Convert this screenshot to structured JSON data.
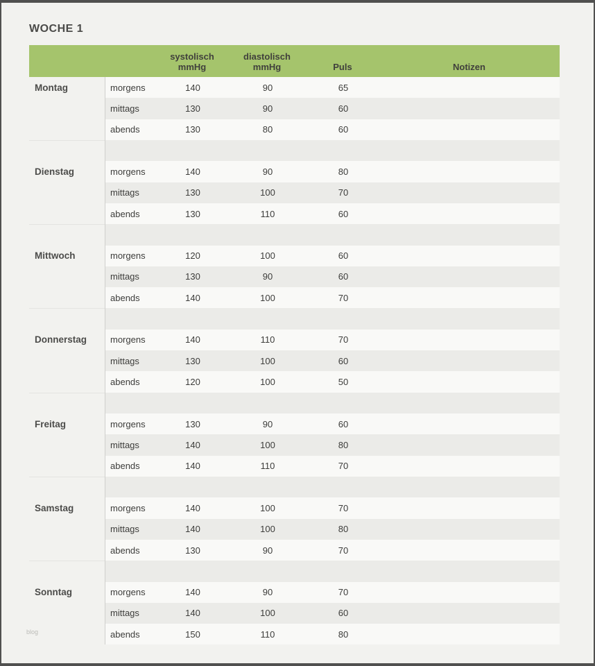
{
  "title": "WOCHE 1",
  "watermark": "blog",
  "colors": {
    "header-green": "#a5c46c",
    "page-bg": "#f2f2ef",
    "row-light": "#f9f9f7",
    "row-dark": "#ebebe8",
    "divider": "#cfcfcc",
    "frame": "#50504f"
  },
  "table": {
    "columns": [
      {
        "line1": "systolisch",
        "line2": "mmHg"
      },
      {
        "line1": "diastolisch",
        "line2": "mmHg"
      },
      {
        "line1": "Puls",
        "line2": ""
      },
      {
        "line1": "Notizen",
        "line2": ""
      }
    ],
    "days": [
      {
        "name": "Montag",
        "entries": [
          {
            "time": "morgens",
            "sys": "140",
            "dia": "90",
            "puls": "65",
            "note": ""
          },
          {
            "time": "mittags",
            "sys": "130",
            "dia": "90",
            "puls": "60",
            "note": ""
          },
          {
            "time": "abends",
            "sys": "130",
            "dia": "80",
            "puls": "60",
            "note": ""
          }
        ]
      },
      {
        "name": "Dienstag",
        "entries": [
          {
            "time": "morgens",
            "sys": "140",
            "dia": "90",
            "puls": "80",
            "note": ""
          },
          {
            "time": "mittags",
            "sys": "130",
            "dia": "100",
            "puls": "70",
            "note": ""
          },
          {
            "time": "abends",
            "sys": "130",
            "dia": "110",
            "puls": "60",
            "note": ""
          }
        ]
      },
      {
        "name": "Mittwoch",
        "entries": [
          {
            "time": "morgens",
            "sys": "120",
            "dia": "100",
            "puls": "60",
            "note": ""
          },
          {
            "time": "mittags",
            "sys": "130",
            "dia": "90",
            "puls": "60",
            "note": ""
          },
          {
            "time": "abends",
            "sys": "140",
            "dia": "100",
            "puls": "70",
            "note": ""
          }
        ]
      },
      {
        "name": "Donnerstag",
        "entries": [
          {
            "time": "morgens",
            "sys": "140",
            "dia": "110",
            "puls": "70",
            "note": ""
          },
          {
            "time": "mittags",
            "sys": "130",
            "dia": "100",
            "puls": "60",
            "note": ""
          },
          {
            "time": "abends",
            "sys": "120",
            "dia": "100",
            "puls": "50",
            "note": ""
          }
        ]
      },
      {
        "name": "Freitag",
        "entries": [
          {
            "time": "morgens",
            "sys": "130",
            "dia": "90",
            "puls": "60",
            "note": ""
          },
          {
            "time": "mittags",
            "sys": "140",
            "dia": "100",
            "puls": "80",
            "note": ""
          },
          {
            "time": "abends",
            "sys": "140",
            "dia": "110",
            "puls": "70",
            "note": ""
          }
        ]
      },
      {
        "name": "Samstag",
        "entries": [
          {
            "time": "morgens",
            "sys": "140",
            "dia": "100",
            "puls": "70",
            "note": ""
          },
          {
            "time": "mittags",
            "sys": "140",
            "dia": "100",
            "puls": "80",
            "note": ""
          },
          {
            "time": "abends",
            "sys": "130",
            "dia": "90",
            "puls": "70",
            "note": ""
          }
        ]
      },
      {
        "name": "Sonntag",
        "entries": [
          {
            "time": "morgens",
            "sys": "140",
            "dia": "90",
            "puls": "70",
            "note": ""
          },
          {
            "time": "mittags",
            "sys": "140",
            "dia": "100",
            "puls": "60",
            "note": ""
          },
          {
            "time": "abends",
            "sys": "150",
            "dia": "110",
            "puls": "80",
            "note": ""
          }
        ]
      }
    ]
  }
}
